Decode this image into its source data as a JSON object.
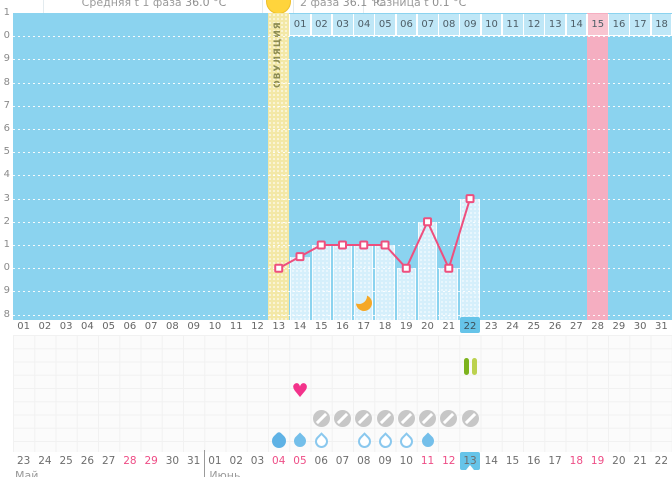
{
  "header": {
    "phase1_label": "Средняя t 1 фаза",
    "phase1_value": "36.0 °C",
    "phase2_label": "2 фаза",
    "phase2_value": "36.1 °C",
    "diff_label": "Разница t",
    "diff_value": "0.1 °C",
    "ovulation_icon": "sun-circle"
  },
  "chart_data": {
    "type": "line",
    "title": "Basal body temperature cycle chart",
    "ylim": [
      35.8,
      37.1
    ],
    "y_step": 0.1,
    "grid": "dotted-white-horizontal",
    "legend": "none",
    "y_axis": {
      "tick_labels": [
        "1",
        "0",
        "9",
        "8",
        "7",
        "6",
        "5",
        "4",
        "3",
        "2",
        "1",
        "0",
        "9",
        "8"
      ]
    },
    "x_axis": {
      "days": [
        "01",
        "02",
        "03",
        "04",
        "05",
        "06",
        "07",
        "08",
        "09",
        "10",
        "11",
        "12",
        "13",
        "14",
        "15",
        "16",
        "17",
        "18",
        "19",
        "20",
        "21",
        "22",
        "23",
        "24",
        "25",
        "26",
        "27",
        "28",
        "29",
        "30",
        "31"
      ],
      "highlighted_day": "22"
    },
    "series": [
      {
        "name": "temperature",
        "points": [
          {
            "d": 13,
            "t": 36.0
          },
          {
            "d": 14,
            "t": 36.05
          },
          {
            "d": 15,
            "t": 36.1
          },
          {
            "d": 16,
            "t": 36.1
          },
          {
            "d": 17,
            "t": 36.1
          },
          {
            "d": 18,
            "t": 36.1
          },
          {
            "d": 19,
            "t": 36.0
          },
          {
            "d": 20,
            "t": 36.2
          },
          {
            "d": 21,
            "t": 36.0
          },
          {
            "d": 22,
            "t": 36.3
          }
        ]
      }
    ],
    "ovulation": {
      "day": 13,
      "label": "ОВУЛЯЦИЯ"
    },
    "expected_period_day": 28,
    "moon_day": 17,
    "dpo_row": {
      "labels": [
        "01",
        "02",
        "03",
        "04",
        "05",
        "06",
        "07",
        "08",
        "09",
        "10",
        "11",
        "12",
        "13",
        "14",
        "15",
        "16",
        "17",
        "18"
      ],
      "highlighted": "15"
    }
  },
  "icons": {
    "tests": [
      {
        "day": 22,
        "type": "opk-two-lines"
      }
    ],
    "intimacy": [
      {
        "day": 14,
        "type": "heart"
      }
    ],
    "pills": [
      15,
      16,
      17,
      18,
      19,
      20,
      21,
      22
    ],
    "discharge": [
      {
        "day": 13,
        "style": "round"
      },
      {
        "day": 14,
        "style": "filled"
      },
      {
        "day": 15,
        "style": "outline"
      },
      {
        "day": 17,
        "style": "outline"
      },
      {
        "day": 18,
        "style": "outline"
      },
      {
        "day": 19,
        "style": "outline"
      },
      {
        "day": 20,
        "style": "filled"
      }
    ]
  },
  "calendar": {
    "months": [
      {
        "label": "Май",
        "dates": [
          {
            "d": "23"
          },
          {
            "d": "24"
          },
          {
            "d": "25"
          },
          {
            "d": "26"
          },
          {
            "d": "27"
          },
          {
            "d": "28",
            "wd": true
          },
          {
            "d": "29",
            "wd": true
          },
          {
            "d": "30"
          },
          {
            "d": "31"
          }
        ]
      },
      {
        "label": "Июнь",
        "dates": [
          {
            "d": "01"
          },
          {
            "d": "02"
          },
          {
            "d": "03"
          },
          {
            "d": "04",
            "wd": true
          },
          {
            "d": "05",
            "wd": true
          },
          {
            "d": "06"
          },
          {
            "d": "07"
          },
          {
            "d": "08"
          },
          {
            "d": "09"
          },
          {
            "d": "10"
          },
          {
            "d": "11",
            "wd": true
          },
          {
            "d": "12",
            "wd": true
          },
          {
            "d": "13",
            "today": true
          },
          {
            "d": "14"
          },
          {
            "d": "15"
          },
          {
            "d": "16"
          },
          {
            "d": "17"
          },
          {
            "d": "18",
            "wd": true
          },
          {
            "d": "19",
            "wd": true
          },
          {
            "d": "20"
          },
          {
            "d": "21"
          },
          {
            "d": "22"
          }
        ]
      }
    ]
  },
  "colors": {
    "chart_bg": "#8bd3ef",
    "bar": "#d5effb",
    "ovulation_stripe": "#f3e8a6",
    "period_stripe": "#f5aec1",
    "dpo_cell": "#bfe7f7",
    "dpo_cell_period": "#f8c5d1",
    "line": "#ee4f7e",
    "today": "#66c4e9",
    "weekend_text": "#ee4d86",
    "heart": "#f3338b",
    "pill": "#c7c7c7",
    "drop": "#74bfea",
    "moon": "#f5a826",
    "test_dark": "#7db31e",
    "test_light": "#bcd24f",
    "sun": "#ffd43c"
  }
}
